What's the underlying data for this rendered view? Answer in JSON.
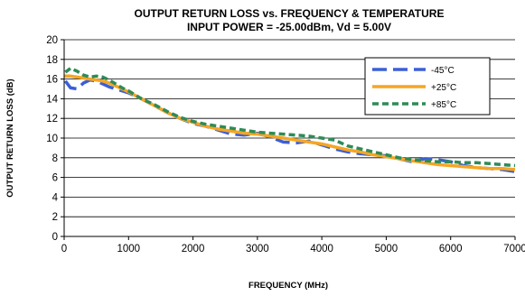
{
  "chart_data": {
    "type": "line",
    "title": "OUTPUT RETURN LOSS vs. FREQUENCY & TEMPERATURE",
    "subtitle": "INPUT POWER = -25.00dBm, Vd = 5.00V",
    "xlabel": "FREQUENCY (MHz)",
    "ylabel": "OUTPUT RETURN LOSS (dB)",
    "xlim": [
      0,
      7000
    ],
    "ylim": [
      0,
      20
    ],
    "xticks": [
      0,
      1000,
      2000,
      3000,
      4000,
      5000,
      6000,
      7000
    ],
    "yticks": [
      0,
      2,
      4,
      6,
      8,
      10,
      12,
      14,
      16,
      18,
      20
    ],
    "grid": true,
    "legend_position": "top-right",
    "series": [
      {
        "name": "-45°C",
        "color": "#3b5fd6",
        "dash": "long-dash",
        "x": [
          20,
          100,
          200,
          300,
          400,
          500,
          600,
          700,
          800,
          900,
          1000,
          1200,
          1400,
          1600,
          1800,
          2000,
          2200,
          2400,
          2600,
          2800,
          3000,
          3200,
          3400,
          3600,
          3800,
          4000,
          4200,
          4400,
          4600,
          4800,
          5000,
          5200,
          5400,
          5600,
          5800,
          6000,
          6200,
          6400,
          6600,
          6800,
          7000
        ],
        "y": [
          15.8,
          15.1,
          15.0,
          15.6,
          15.9,
          15.8,
          15.5,
          15.2,
          15.0,
          14.8,
          14.6,
          14.0,
          13.3,
          12.6,
          12.0,
          11.5,
          11.2,
          10.8,
          10.4,
          10.3,
          10.5,
          10.1,
          9.6,
          9.5,
          9.7,
          9.3,
          8.9,
          8.6,
          8.4,
          8.3,
          8.2,
          7.9,
          7.6,
          7.9,
          7.8,
          7.6,
          7.2,
          7.0,
          6.9,
          6.8,
          6.6
        ]
      },
      {
        "name": "+25°C",
        "color": "#f5a623",
        "dash": "solid",
        "x": [
          0,
          100,
          200,
          300,
          400,
          500,
          600,
          700,
          800,
          900,
          1000,
          1200,
          1400,
          1600,
          1800,
          2000,
          2200,
          2400,
          2600,
          2800,
          3000,
          3200,
          3400,
          3600,
          3800,
          4000,
          4200,
          4400,
          4600,
          4800,
          5000,
          5200,
          5400,
          5600,
          5800,
          6000,
          6200,
          6400,
          6600,
          6800,
          7000
        ],
        "y": [
          16.3,
          16.3,
          16.2,
          16.1,
          16.0,
          15.9,
          15.8,
          15.6,
          15.3,
          15.0,
          14.7,
          14.0,
          13.3,
          12.6,
          12.0,
          11.6,
          11.2,
          10.9,
          10.7,
          10.5,
          10.4,
          10.2,
          10.0,
          9.8,
          9.6,
          9.4,
          9.1,
          8.8,
          8.6,
          8.3,
          8.1,
          7.9,
          7.7,
          7.5,
          7.3,
          7.2,
          7.1,
          7.0,
          6.9,
          6.9,
          6.8
        ]
      },
      {
        "name": "+85°C",
        "color": "#2e8b57",
        "dash": "short-dash",
        "x": [
          20,
          100,
          200,
          300,
          400,
          500,
          600,
          700,
          800,
          900,
          1000,
          1200,
          1400,
          1600,
          1800,
          2000,
          2200,
          2400,
          2600,
          2800,
          3000,
          3200,
          3400,
          3600,
          3800,
          4000,
          4200,
          4400,
          4600,
          4800,
          5000,
          5200,
          5400,
          5600,
          5800,
          6000,
          6200,
          6400,
          6600,
          6800,
          7000
        ],
        "y": [
          16.7,
          17.1,
          16.8,
          16.4,
          16.2,
          16.3,
          16.2,
          15.9,
          15.5,
          15.1,
          14.8,
          14.0,
          13.4,
          12.7,
          12.1,
          11.7,
          11.4,
          11.2,
          11.0,
          10.8,
          10.6,
          10.5,
          10.4,
          10.3,
          10.2,
          10.0,
          9.8,
          9.2,
          8.9,
          8.6,
          8.3,
          8.0,
          7.8,
          7.7,
          7.6,
          7.6,
          7.5,
          7.5,
          7.4,
          7.3,
          7.2
        ]
      }
    ]
  }
}
